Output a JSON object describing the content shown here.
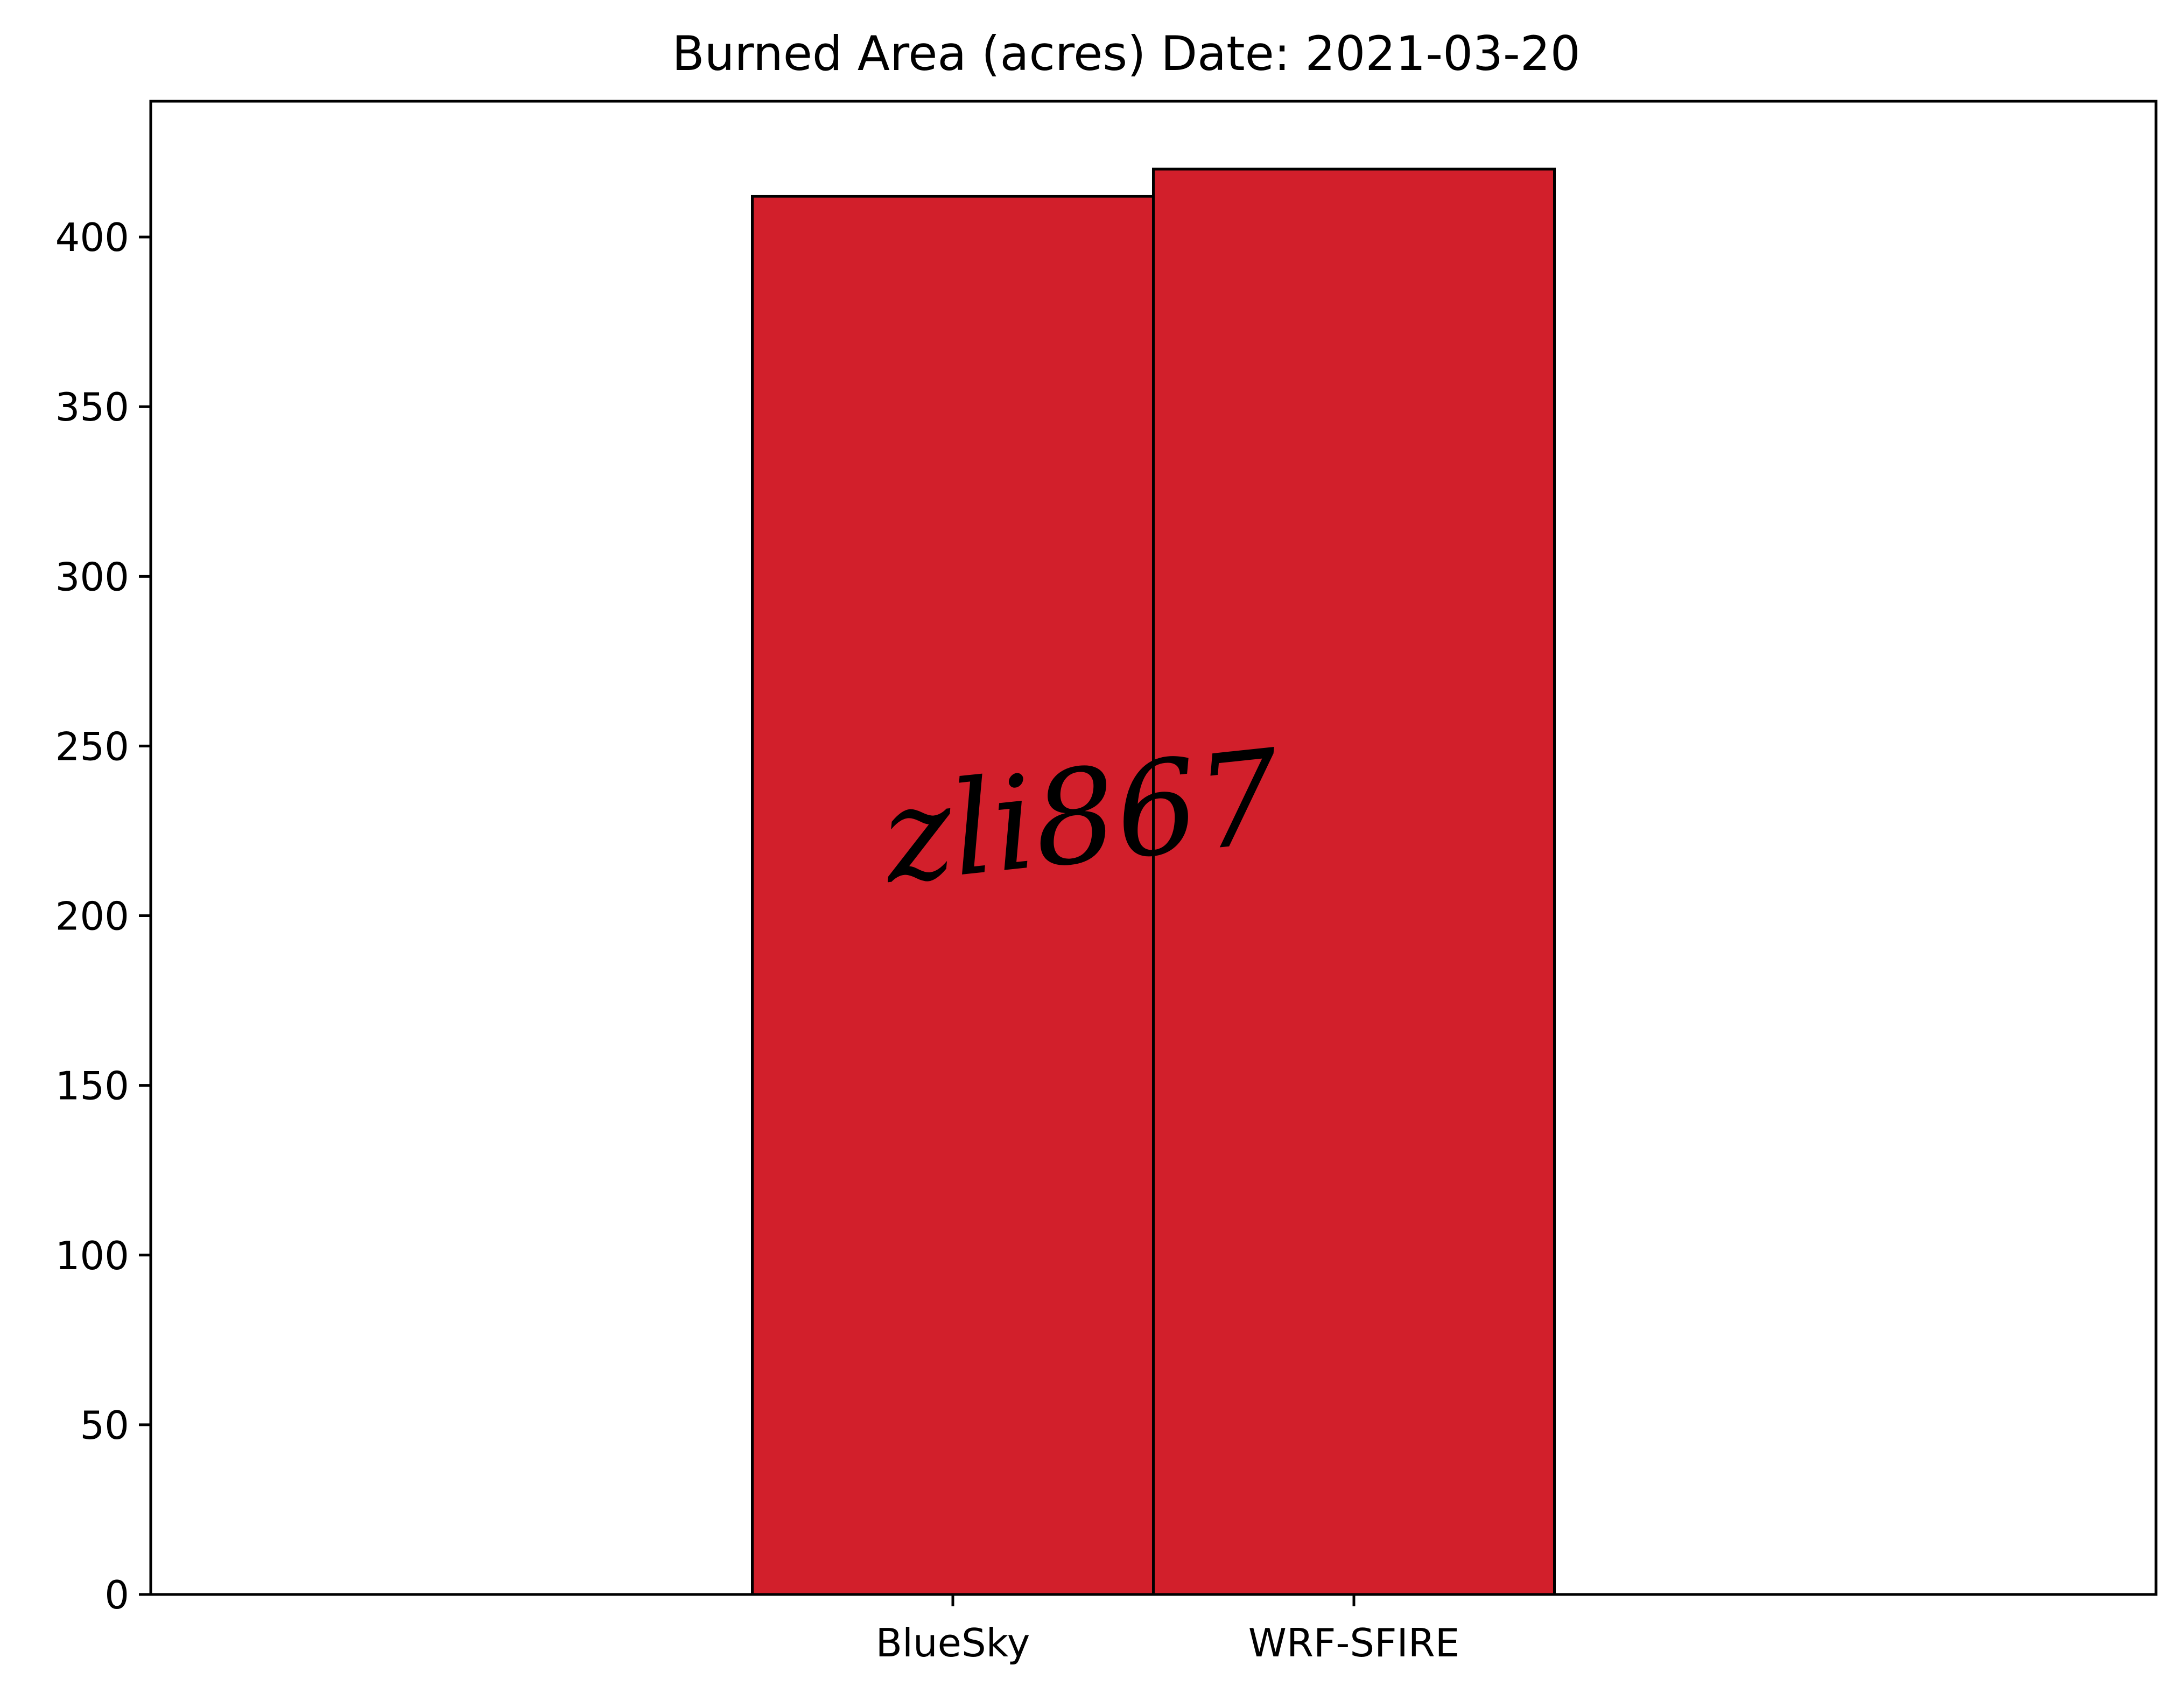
{
  "chart_data": {
    "type": "bar",
    "title": "Burned Area (acres) Date: 2021-03-20",
    "xlabel": "",
    "ylabel": "",
    "categories": [
      "BlueSky",
      "WRF-SFIRE"
    ],
    "values": [
      412,
      420
    ],
    "ylim": [
      0,
      440
    ],
    "yticks": [
      0,
      50,
      100,
      150,
      200,
      250,
      300,
      350,
      400
    ],
    "bar_color": "#d21f2b",
    "edge_color": "#000000",
    "grid": false,
    "legend": "none"
  },
  "watermark": "zli867"
}
